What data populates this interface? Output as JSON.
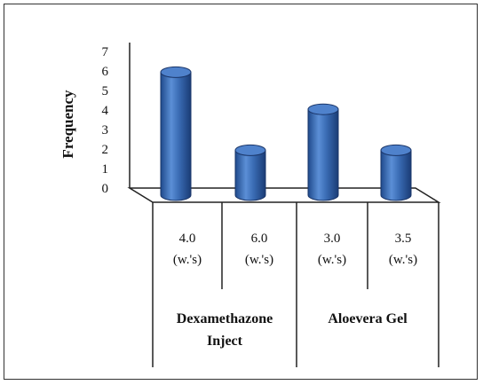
{
  "chart_data": {
    "type": "bar",
    "ylabel": "Frequency",
    "xlabel": "",
    "ylim": [
      0,
      7
    ],
    "yticks": [
      "0",
      "1",
      "2",
      "3",
      "4",
      "5",
      "6",
      "7"
    ],
    "categories": [
      {
        "line1": "4.0",
        "line2": "(w.'s)"
      },
      {
        "line1": "6.0",
        "line2": "(w.'s)"
      },
      {
        "line1": "3.0",
        "line2": "(w.'s)"
      },
      {
        "line1": "3.5",
        "line2": "(w.'s)"
      }
    ],
    "values": [
      6.3,
      2.3,
      4.4,
      2.3
    ],
    "groups": [
      {
        "line1": "Dexamethazone",
        "line2": "Inject"
      },
      {
        "line1": "Aloevera Gel",
        "line2": ""
      }
    ],
    "bar_color": "#3a6cb5"
  }
}
